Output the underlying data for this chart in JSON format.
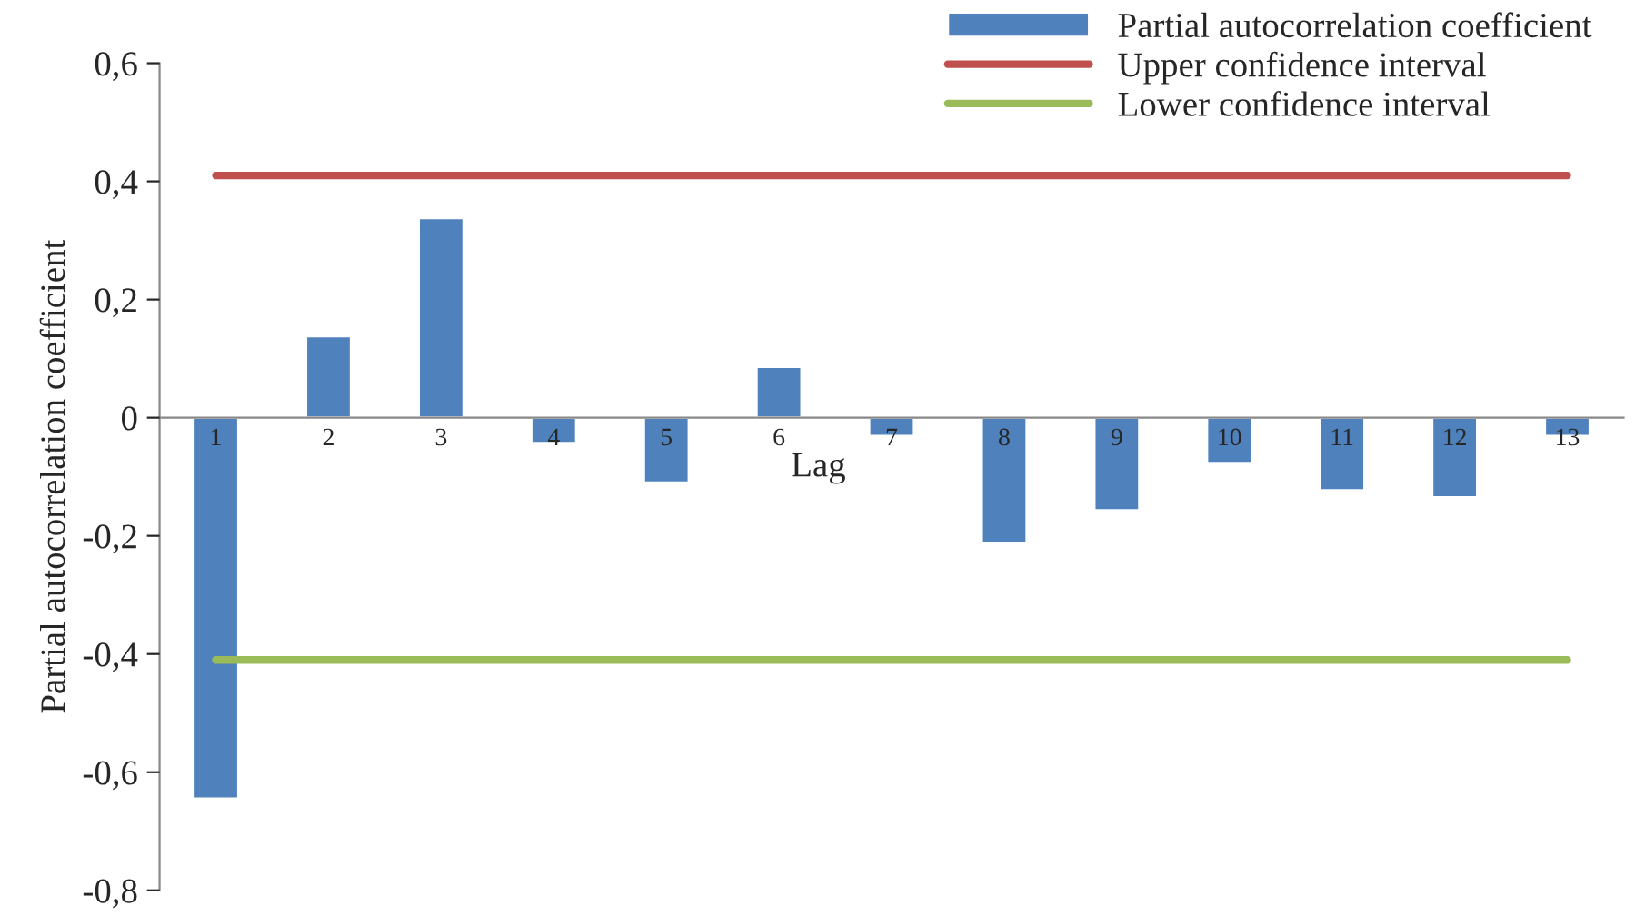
{
  "chart_data": {
    "type": "bar",
    "xlabel": "Lag",
    "ylabel": "Partial autocorrelation coefficient",
    "categories": [
      "1",
      "2",
      "3",
      "4",
      "5",
      "6",
      "7",
      "8",
      "9",
      "10",
      "11",
      "12",
      "13"
    ],
    "series": [
      {
        "name": "Partial autocorrelation coefficient",
        "color": "#4f81bd",
        "values": [
          -0.645,
          0.138,
          0.338,
          -0.043,
          -0.11,
          0.086,
          -0.031,
          -0.212,
          -0.157,
          -0.077,
          -0.123,
          -0.135,
          -0.031
        ]
      },
      {
        "name": "Upper confidence interval",
        "type": "line",
        "color": "#c0504d",
        "values": [
          0.41,
          0.41,
          0.41,
          0.41,
          0.41,
          0.41,
          0.41,
          0.41,
          0.41,
          0.41,
          0.41,
          0.41,
          0.41
        ]
      },
      {
        "name": "Lower confidence interval",
        "type": "line",
        "color": "#9bbb59",
        "values": [
          -0.41,
          -0.41,
          -0.41,
          -0.41,
          -0.41,
          -0.41,
          -0.41,
          -0.41,
          -0.41,
          -0.41,
          -0.41,
          -0.41,
          -0.41
        ]
      }
    ],
    "ylim": [
      -0.8,
      0.6
    ],
    "yticks": [
      {
        "value": -0.8,
        "label": "-0,8"
      },
      {
        "value": -0.6,
        "label": "-0,6"
      },
      {
        "value": -0.4,
        "label": "-0,4"
      },
      {
        "value": -0.2,
        "label": "-0,2"
      },
      {
        "value": 0,
        "label": "0"
      },
      {
        "value": 0.2,
        "label": "0,2"
      },
      {
        "value": 0.4,
        "label": "0,4"
      },
      {
        "value": 0.6,
        "label": "0,6"
      }
    ],
    "grid": false,
    "legend": "top right"
  }
}
